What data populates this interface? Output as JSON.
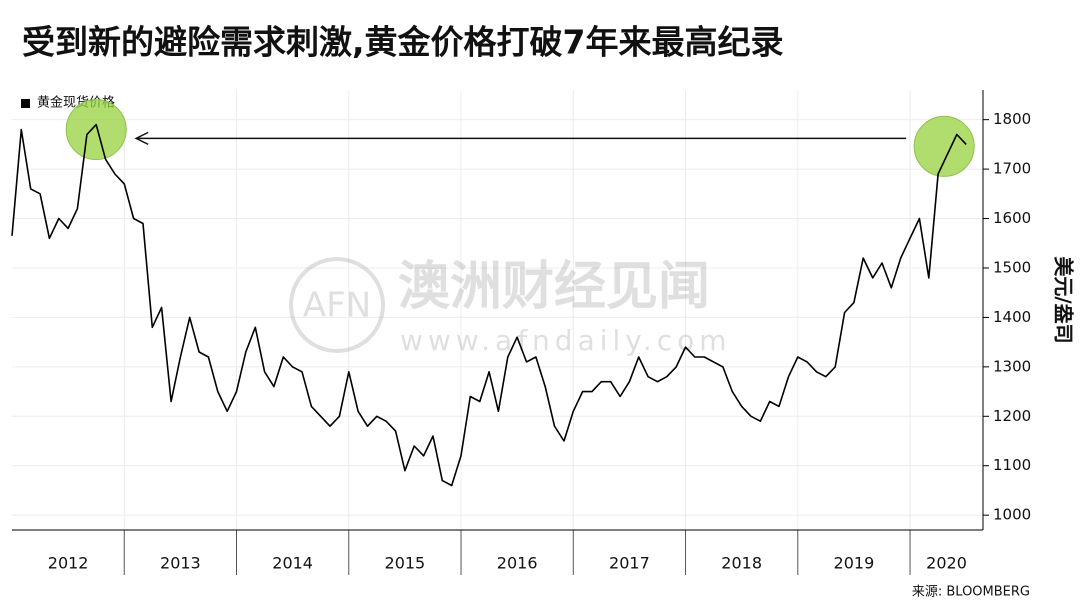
{
  "chart_data": {
    "type": "line",
    "title": "受到新的避险需求刺激,黄金价格打破7年来最高纪录",
    "legend": "黄金现货价格",
    "y_label": "美元/盎司",
    "source": "来源: BLOOMBERG",
    "watermark": {
      "logo": "AFN",
      "name": "澳洲财经见闻",
      "url": "www.afndaily.com"
    },
    "x_categories": [
      "2012",
      "2013",
      "2014",
      "2015",
      "2016",
      "2017",
      "2018",
      "2019",
      "2020"
    ],
    "x_gridlines": [
      2013,
      2014,
      2015,
      2016,
      2017,
      2018,
      2019,
      2020
    ],
    "xlim": [
      2012,
      2020.65
    ],
    "ylim": [
      970,
      1860
    ],
    "yticks": [
      1000,
      1100,
      1200,
      1300,
      1400,
      1500,
      1600,
      1700,
      1800
    ],
    "grid": true,
    "series": [
      {
        "name": "黄金现货价格",
        "color": "#000000",
        "x": [
          2012,
          2012.083,
          2012.167,
          2012.25,
          2012.333,
          2012.417,
          2012.5,
          2012.583,
          2012.667,
          2012.75,
          2012.833,
          2012.917,
          2013,
          2013.083,
          2013.167,
          2013.25,
          2013.333,
          2013.417,
          2013.5,
          2013.583,
          2013.667,
          2013.75,
          2013.833,
          2013.917,
          2014,
          2014.083,
          2014.167,
          2014.25,
          2014.333,
          2014.417,
          2014.5,
          2014.583,
          2014.667,
          2014.75,
          2014.833,
          2014.917,
          2015,
          2015.083,
          2015.167,
          2015.25,
          2015.333,
          2015.417,
          2015.5,
          2015.583,
          2015.667,
          2015.75,
          2015.833,
          2015.917,
          2016,
          2016.083,
          2016.167,
          2016.25,
          2016.333,
          2016.417,
          2016.5,
          2016.583,
          2016.667,
          2016.75,
          2016.833,
          2016.917,
          2017,
          2017.083,
          2017.167,
          2017.25,
          2017.333,
          2017.417,
          2017.5,
          2017.583,
          2017.667,
          2017.75,
          2017.833,
          2017.917,
          2018,
          2018.083,
          2018.167,
          2018.25,
          2018.333,
          2018.417,
          2018.5,
          2018.583,
          2018.667,
          2018.75,
          2018.833,
          2018.917,
          2019,
          2019.083,
          2019.167,
          2019.25,
          2019.333,
          2019.417,
          2019.5,
          2019.583,
          2019.667,
          2019.75,
          2019.833,
          2019.917,
          2020,
          2020.083,
          2020.167,
          2020.25,
          2020.333,
          2020.417,
          2020.5
        ],
        "values": [
          1565,
          1780,
          1660,
          1650,
          1560,
          1600,
          1580,
          1620,
          1770,
          1790,
          1720,
          1690,
          1670,
          1600,
          1590,
          1380,
          1420,
          1230,
          1320,
          1400,
          1330,
          1320,
          1250,
          1210,
          1250,
          1330,
          1380,
          1290,
          1260,
          1320,
          1300,
          1290,
          1220,
          1200,
          1180,
          1200,
          1290,
          1210,
          1180,
          1200,
          1190,
          1170,
          1090,
          1140,
          1120,
          1160,
          1070,
          1060,
          1120,
          1240,
          1230,
          1290,
          1210,
          1320,
          1360,
          1310,
          1320,
          1260,
          1180,
          1150,
          1210,
          1250,
          1250,
          1270,
          1270,
          1240,
          1270,
          1320,
          1280,
          1270,
          1280,
          1300,
          1340,
          1320,
          1320,
          1310,
          1300,
          1250,
          1220,
          1200,
          1190,
          1230,
          1220,
          1280,
          1320,
          1310,
          1290,
          1280,
          1300,
          1410,
          1430,
          1520,
          1480,
          1510,
          1460,
          1520,
          1560,
          1600,
          1480,
          1690,
          1730,
          1770,
          1750
        ]
      }
    ]
  }
}
